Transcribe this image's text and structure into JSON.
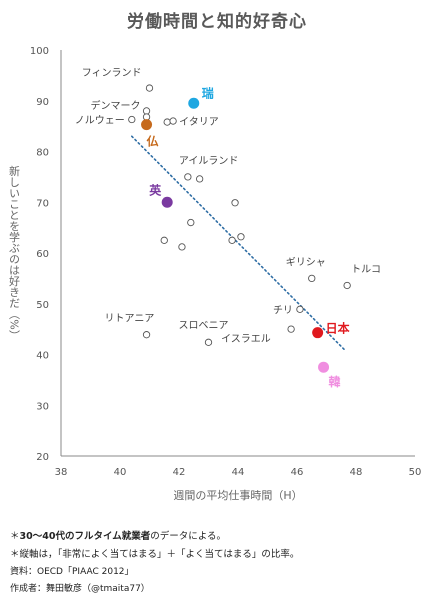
{
  "title": "労働時間と知的好奇心",
  "chart_data": {
    "type": "scatter",
    "title": "労働時間と知的好奇心",
    "xlabel": "週間の平均仕事時間（H）",
    "ylabel": "新しいことを学ぶのは好きだ（%）",
    "xlim": [
      38,
      50
    ],
    "ylim": [
      20,
      100
    ],
    "x_ticks": [
      38,
      40,
      42,
      44,
      46,
      48,
      50
    ],
    "y_ticks": [
      20,
      30,
      40,
      50,
      60,
      70,
      80,
      90,
      100
    ],
    "grid": false,
    "points": [
      {
        "label": "フィンランド",
        "x": 41.0,
        "y": 92.5
      },
      {
        "label": "デンマーク",
        "x": 40.9,
        "y": 88.0
      },
      {
        "label": "",
        "x": 40.9,
        "y": 86.8
      },
      {
        "label": "ノルウェー",
        "x": 40.4,
        "y": 86.3
      },
      {
        "label": "",
        "x": 41.6,
        "y": 85.8
      },
      {
        "label": "イタリア",
        "x": 41.8,
        "y": 86.0
      },
      {
        "label": "アイルランド",
        "x": 42.3,
        "y": 75.0
      },
      {
        "label": "",
        "x": 42.7,
        "y": 74.6
      },
      {
        "label": "",
        "x": 43.9,
        "y": 69.9
      },
      {
        "label": "",
        "x": 42.4,
        "y": 66.0
      },
      {
        "label": "",
        "x": 41.5,
        "y": 62.5
      },
      {
        "label": "",
        "x": 42.1,
        "y": 61.2
      },
      {
        "label": "",
        "x": 43.8,
        "y": 62.5
      },
      {
        "label": "",
        "x": 44.1,
        "y": 63.2
      },
      {
        "label": "ギリシャ",
        "x": 46.5,
        "y": 55.0
      },
      {
        "label": "トルコ",
        "x": 47.7,
        "y": 53.6
      },
      {
        "label": "チリ",
        "x": 46.1,
        "y": 48.9
      },
      {
        "label": "イスラエル",
        "x": 45.8,
        "y": 45.0
      },
      {
        "label": "リトアニア",
        "x": 40.9,
        "y": 43.9
      },
      {
        "label": "スロベニア",
        "x": 43.0,
        "y": 42.4
      }
    ],
    "highlighted": [
      {
        "label": "瑞",
        "x": 42.5,
        "y": 89.5,
        "color": "#1ea7e1"
      },
      {
        "label": "仏",
        "x": 40.9,
        "y": 85.3,
        "color": "#c66a1c"
      },
      {
        "label": "英",
        "x": 41.6,
        "y": 70.0,
        "color": "#7a3aa0"
      },
      {
        "label": "日本",
        "x": 46.7,
        "y": 44.3,
        "color": "#e0191e"
      },
      {
        "label": "韓",
        "x": 46.9,
        "y": 37.5,
        "color": "#f08ee0"
      }
    ],
    "trendline": {
      "x1": 40.4,
      "y1": 83.0,
      "x2": 47.6,
      "y2": 41.0,
      "color": "#2e6da4",
      "style": "dotted"
    }
  },
  "notes": {
    "line1_prefix": "＊",
    "line1_bold": "30～40代のフルタイム就業者",
    "line1_suffix": "のデータによる。",
    "line2": "＊縦軸は，「非常によく当てはまる」＋「よく当てはまる」の比率。",
    "line3": "資料：OECD「PIAAC 2012」",
    "line4": "作成者：舞田敏彦（@tmaita77）"
  }
}
